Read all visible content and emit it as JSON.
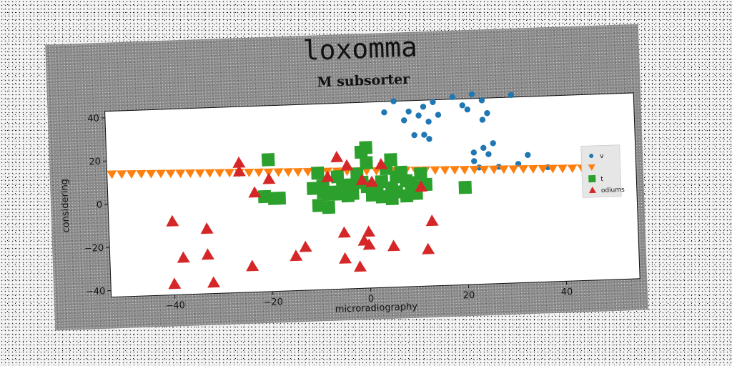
{
  "chart_data": {
    "type": "scatter",
    "suptitle": "loxomma",
    "title": "M subsorter",
    "xlabel": "microradiography",
    "ylabel": "considering",
    "xlim": [
      -53,
      55
    ],
    "ylim": [
      -43,
      43
    ],
    "xticks": [
      -40,
      -20,
      0,
      20,
      40
    ],
    "xtick_labels": [
      "−40",
      "−20",
      "0",
      "20",
      "40"
    ],
    "yticks": [
      -40,
      -20,
      0,
      20,
      40
    ],
    "ytick_labels": [
      "−40",
      "−20",
      "0",
      "20",
      "40"
    ],
    "grid": false,
    "legend": {
      "position": "right",
      "entries": [
        {
          "label": "v",
          "marker": "circle",
          "color": "#1f77b4"
        },
        {
          "label": "",
          "marker": "triangle-down",
          "color": "#ff7f0e"
        },
        {
          "label": "t",
          "marker": "square",
          "color": "#2ca02c"
        },
        {
          "label": "odiums",
          "marker": "triangle-up",
          "color": "#d62728"
        }
      ]
    },
    "series": [
      {
        "marker": "circle",
        "color": "#1f77b4",
        "points": [
          [
            4,
            38
          ],
          [
            6,
            43
          ],
          [
            9,
            38
          ],
          [
            12,
            40
          ],
          [
            14,
            42
          ],
          [
            18,
            44
          ],
          [
            20,
            40
          ],
          [
            21,
            38
          ],
          [
            22,
            45
          ],
          [
            24,
            42
          ],
          [
            25,
            36
          ],
          [
            30,
            44
          ],
          [
            8,
            34
          ],
          [
            11,
            36
          ],
          [
            13,
            33
          ],
          [
            15,
            36
          ],
          [
            24,
            33
          ],
          [
            10,
            27
          ],
          [
            12,
            27
          ],
          [
            13,
            25
          ],
          [
            22,
            18
          ],
          [
            24,
            20
          ],
          [
            26,
            22
          ],
          [
            33,
            16
          ],
          [
            25,
            17
          ],
          [
            22,
            14
          ],
          [
            37,
            10
          ],
          [
            31,
            12
          ],
          [
            27,
            11
          ],
          [
            23,
            11
          ]
        ]
      },
      {
        "marker": "triangle-down",
        "color": "#ff7f0e",
        "points": [
          [
            -52,
            13.9
          ],
          [
            -50,
            13.8
          ],
          [
            -48,
            13.7
          ],
          [
            -46,
            13.6
          ],
          [
            -44,
            13.5
          ],
          [
            -42,
            13.4
          ],
          [
            -40,
            13.3
          ],
          [
            -38,
            13.2
          ],
          [
            -36,
            13.1
          ],
          [
            -34,
            13.0
          ],
          [
            -32,
            12.9
          ],
          [
            -30,
            12.8
          ],
          [
            -28,
            12.7
          ],
          [
            -26,
            12.6
          ],
          [
            -24,
            12.5
          ],
          [
            -22,
            12.4
          ],
          [
            -20,
            12.3
          ],
          [
            -18,
            12.2
          ],
          [
            -16,
            12.1
          ],
          [
            -14,
            12.0
          ],
          [
            -12,
            11.9
          ],
          [
            -10,
            11.8
          ],
          [
            -8,
            11.7
          ],
          [
            -6,
            11.6
          ],
          [
            -4,
            11.5
          ],
          [
            -2,
            11.4
          ],
          [
            0,
            11.3
          ],
          [
            2,
            11.2
          ],
          [
            4,
            11.1
          ],
          [
            6,
            11.0
          ],
          [
            8,
            10.9
          ],
          [
            10,
            10.8
          ],
          [
            12,
            10.7
          ],
          [
            14,
            10.6
          ],
          [
            16,
            10.5
          ],
          [
            18,
            10.4
          ],
          [
            20,
            10.3
          ],
          [
            22,
            10.2
          ],
          [
            24,
            10.1
          ],
          [
            26,
            10.0
          ],
          [
            28,
            9.9
          ],
          [
            30,
            9.8
          ],
          [
            32,
            9.7
          ],
          [
            34,
            9.6
          ],
          [
            36,
            9.5
          ],
          [
            38,
            9.4
          ],
          [
            40,
            9.3
          ],
          [
            42,
            9.2
          ],
          [
            44,
            9.1
          ],
          [
            46,
            9.0
          ],
          [
            48,
            8.9
          ]
        ]
      },
      {
        "marker": "square",
        "color": "#2ca02c",
        "points": [
          [
            -20,
            18
          ],
          [
            -21,
            1
          ],
          [
            -19,
            0
          ],
          [
            -18,
            0
          ],
          [
            -10,
            11
          ],
          [
            -11,
            4
          ],
          [
            -9,
            5
          ],
          [
            -8,
            1
          ],
          [
            -10,
            -4
          ],
          [
            -7,
            2
          ],
          [
            -6,
            9
          ],
          [
            -5,
            4
          ],
          [
            -4,
            0
          ],
          [
            -3,
            5
          ],
          [
            -2,
            10
          ],
          [
            -1,
            20
          ],
          [
            0,
            22
          ],
          [
            0,
            15
          ],
          [
            -1,
            6
          ],
          [
            0,
            4
          ],
          [
            1,
            0
          ],
          [
            2,
            2
          ],
          [
            3,
            6
          ],
          [
            4,
            12
          ],
          [
            5,
            16
          ],
          [
            5,
            3
          ],
          [
            6,
            1
          ],
          [
            7,
            10
          ],
          [
            8,
            6
          ],
          [
            9,
            5
          ],
          [
            10,
            0
          ],
          [
            11,
            9
          ],
          [
            12,
            4
          ],
          [
            10,
            3
          ],
          [
            -3,
            1
          ],
          [
            -6,
            1
          ],
          [
            -8,
            -5
          ],
          [
            -9,
            2
          ],
          [
            -4,
            5
          ],
          [
            3,
            -1
          ],
          [
            5,
            -2
          ],
          [
            8,
            -1
          ],
          [
            9,
            1
          ],
          [
            6,
            8
          ],
          [
            20,
            2
          ]
        ]
      },
      {
        "marker": "triangle-up",
        "color": "#d62728",
        "points": [
          [
            -26,
            17
          ],
          [
            -26,
            13
          ],
          [
            -20,
            9
          ],
          [
            -23,
            3
          ],
          [
            -8,
            9
          ],
          [
            -4,
            14
          ],
          [
            -6,
            18
          ],
          [
            3,
            14
          ],
          [
            -1,
            7
          ],
          [
            1,
            6
          ],
          [
            11,
            3
          ],
          [
            -40,
            -9
          ],
          [
            -38,
            -26
          ],
          [
            -33,
            -13
          ],
          [
            -33,
            -25
          ],
          [
            -40,
            -38
          ],
          [
            -32,
            -38
          ],
          [
            -24,
            -31
          ],
          [
            -13,
            -23
          ],
          [
            -15,
            -27
          ],
          [
            -5,
            -17
          ],
          [
            -5,
            -29
          ],
          [
            -2,
            -33
          ],
          [
            0,
            -17
          ],
          [
            -1,
            -21
          ],
          [
            0,
            -23
          ],
          [
            5,
            -24
          ],
          [
            12,
            -26
          ],
          [
            13,
            -13
          ]
        ]
      }
    ]
  }
}
